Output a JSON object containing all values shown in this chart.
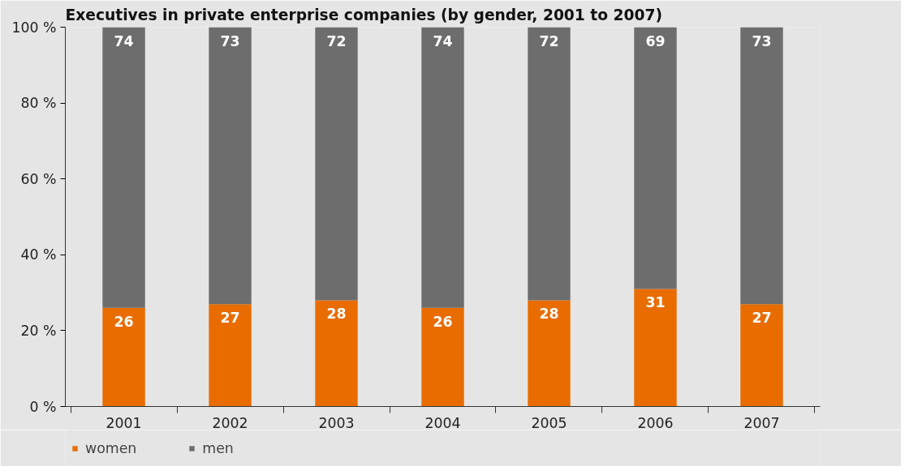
{
  "chart_data": {
    "type": "bar",
    "stacked": true,
    "title": "Executives in private enterprise companies (by gender, 2001 to 2007)",
    "categories": [
      "2001",
      "2002",
      "2003",
      "2004",
      "2005",
      "2006",
      "2007"
    ],
    "series": [
      {
        "name": "women",
        "color": "#e86c00",
        "values": [
          26,
          27,
          28,
          26,
          28,
          31,
          27
        ]
      },
      {
        "name": "men",
        "color": "#6d6d6d",
        "values": [
          74,
          73,
          72,
          74,
          72,
          69,
          73
        ]
      }
    ],
    "ylim": [
      0,
      100
    ],
    "yticks": [
      {
        "value": 0,
        "label": "0 %"
      },
      {
        "value": 20,
        "label": "20 %"
      },
      {
        "value": 40,
        "label": "40 %"
      },
      {
        "value": 60,
        "label": "60 %"
      },
      {
        "value": 80,
        "label": "80 %"
      },
      {
        "value": 100,
        "label": "100 %"
      }
    ],
    "data_labels": true,
    "grid": false,
    "legend": "bottom left"
  }
}
